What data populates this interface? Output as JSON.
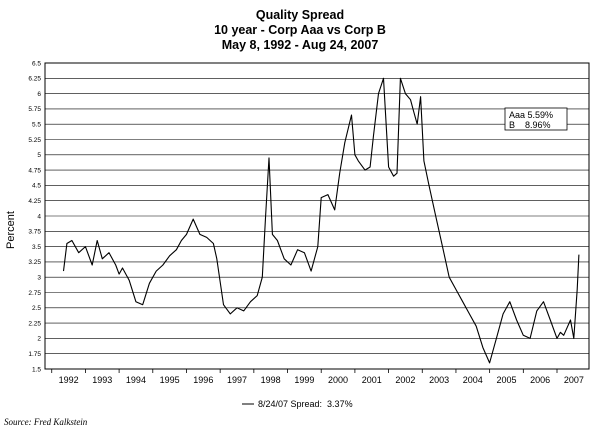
{
  "chart_data": {
    "type": "line",
    "title": "Quality Spread",
    "subtitle_1": "10 year - Corp Aaa vs Corp B",
    "subtitle_2": "May 8, 1992 - Aug 24, 2007",
    "xlabel": "",
    "ylabel": "Percent",
    "ylim": [
      1.5,
      6.5
    ],
    "ytick_step": 0.25,
    "grid": true,
    "x_tick_labels": [
      "1992",
      "1993",
      "1994",
      "1995",
      "1996",
      "1997",
      "1998",
      "1999",
      "2000",
      "2001",
      "2002",
      "2003",
      "2004",
      "2005",
      "2006",
      "2007"
    ],
    "annotation": {
      "line1": "Aaa 5.59%",
      "line2": "B    8.96%"
    },
    "legend_label": "8/24/07 Spread:  3.37%",
    "legend_position": "bottom-center",
    "source_note": "Source: Fred Kalkstein",
    "series": [
      {
        "name": "8/24/07 Spread:  3.37%",
        "color": "#000000",
        "x": [
          1992.35,
          1992.45,
          1992.6,
          1992.8,
          1993.0,
          1993.2,
          1993.35,
          1993.5,
          1993.7,
          1993.9,
          1994.0,
          1994.1,
          1994.3,
          1994.5,
          1994.7,
          1994.9,
          1995.1,
          1995.3,
          1995.5,
          1995.7,
          1995.85,
          1996.0,
          1996.2,
          1996.4,
          1996.6,
          1996.7,
          1996.8,
          1996.9,
          1997.1,
          1997.3,
          1997.5,
          1997.7,
          1997.9,
          1998.1,
          1998.25,
          1998.35,
          1998.45,
          1998.55,
          1998.7,
          1998.9,
          1999.1,
          1999.3,
          1999.5,
          1999.7,
          1999.9,
          2000.0,
          2000.2,
          2000.4,
          2000.55,
          2000.7,
          2000.9,
          2001.0,
          2001.1,
          2001.3,
          2001.45,
          2001.55,
          2001.7,
          2001.85,
          2002.0,
          2002.15,
          2002.25,
          2002.35,
          2002.5,
          2002.65,
          2002.75,
          2002.85,
          2002.95,
          2003.05,
          2003.2,
          2003.4,
          2003.6,
          2003.8,
          2004.0,
          2004.2,
          2004.4,
          2004.6,
          2004.8,
          2005.0,
          2005.2,
          2005.4,
          2005.6,
          2005.8,
          2006.0,
          2006.2,
          2006.4,
          2006.6,
          2006.8,
          2007.0,
          2007.1,
          2007.2,
          2007.4,
          2007.5,
          2007.6,
          2007.65
        ],
        "values": [
          3.1,
          3.55,
          3.6,
          3.4,
          3.5,
          3.2,
          3.6,
          3.3,
          3.4,
          3.2,
          3.05,
          3.15,
          2.95,
          2.6,
          2.55,
          2.9,
          3.1,
          3.2,
          3.35,
          3.45,
          3.6,
          3.7,
          3.95,
          3.7,
          3.65,
          3.6,
          3.55,
          3.3,
          2.55,
          2.4,
          2.5,
          2.45,
          2.6,
          2.7,
          3.0,
          4.0,
          4.95,
          3.7,
          3.6,
          3.3,
          3.2,
          3.45,
          3.4,
          3.1,
          3.5,
          4.3,
          4.35,
          4.1,
          4.7,
          5.2,
          5.65,
          5.0,
          4.9,
          4.75,
          4.8,
          5.3,
          6.0,
          6.25,
          4.8,
          4.65,
          4.7,
          6.25,
          6.0,
          5.9,
          5.7,
          5.5,
          5.95,
          4.9,
          4.5,
          4.0,
          3.5,
          3.0,
          2.8,
          2.6,
          2.4,
          2.2,
          1.85,
          1.6,
          2.0,
          2.4,
          2.6,
          2.3,
          2.05,
          2.0,
          2.45,
          2.6,
          2.3,
          2.0,
          2.1,
          2.05,
          2.3,
          2.0,
          2.8,
          3.37
        ]
      }
    ]
  }
}
